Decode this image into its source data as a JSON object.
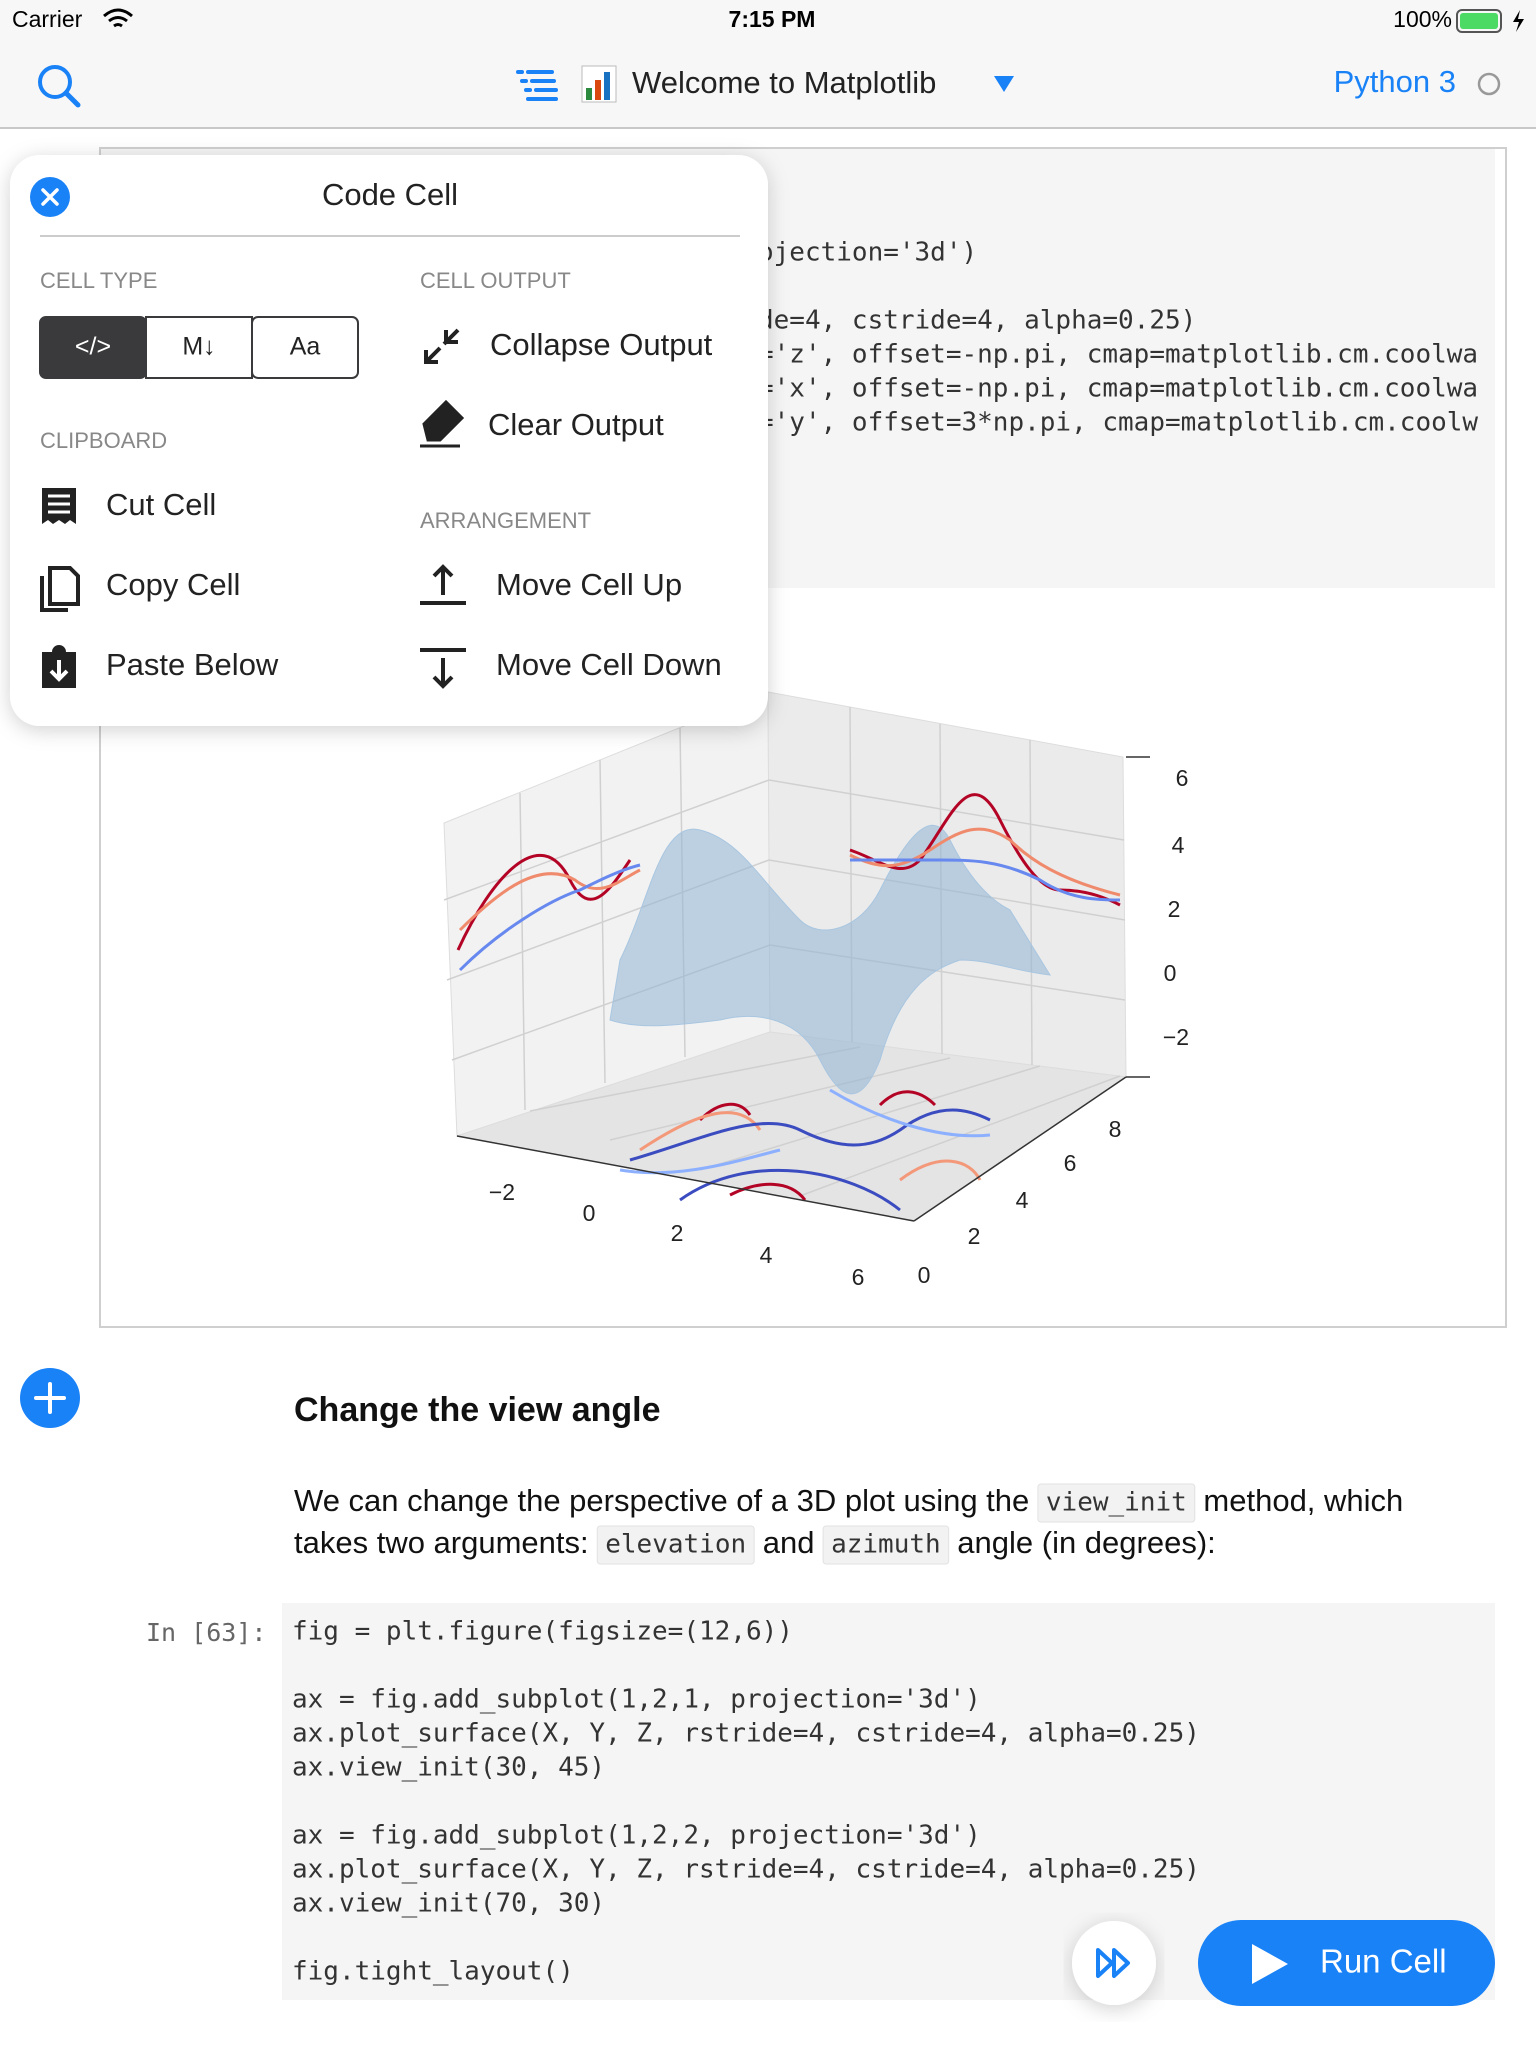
{
  "status_bar": {
    "carrier": "Carrier",
    "time": "7:15 PM",
    "battery": "100%"
  },
  "nav_bar": {
    "title": "Welcome to Matplotlib",
    "kernel": "Python 3"
  },
  "output_cell": {
    "code_lines": [
      "ojection='3d')",
      "de=4, cstride=4, alpha=0.25)",
      "='z', offset=-np.pi, cmap=matplotlib.cm.coolwa",
      "='x', offset=-np.pi, cmap=matplotlib.cm.coolwa",
      "='y', offset=3*np.pi, cmap=matplotlib.cm.coolw"
    ],
    "plot": {
      "x_tick_labels": [
        "−2",
        "0",
        "2",
        "4",
        "6"
      ],
      "y_tick_labels": [
        "0",
        "2",
        "4",
        "6",
        "8"
      ],
      "z_tick_labels": [
        "−2",
        "0",
        "2",
        "4",
        "6"
      ]
    }
  },
  "popover": {
    "title": "Code Cell",
    "cell_type": {
      "label": "CELL TYPE",
      "options": [
        "</>",
        "M↓",
        "Aa"
      ]
    },
    "cell_output": {
      "label": "CELL OUTPUT",
      "actions": [
        "Collapse Output",
        "Clear Output"
      ]
    },
    "clipboard": {
      "label": "CLIPBOARD",
      "actions": [
        "Cut Cell",
        "Copy Cell",
        "Paste Below"
      ]
    },
    "arrangement": {
      "label": "ARRANGEMENT",
      "actions": [
        "Move Cell Up",
        "Move Cell Down"
      ]
    }
  },
  "markdown_cell": {
    "heading": "Change the view angle",
    "lines": [
      [
        {
          "text": "We can change the perspective of a 3D plot using the "
        },
        {
          "code": "view_init"
        },
        {
          "text": " method, which"
        }
      ],
      [
        {
          "text": "takes two arguments: "
        },
        {
          "code": "elevation"
        },
        {
          "text": " and "
        },
        {
          "code": "azimuth"
        },
        {
          "text": " angle (in degrees):"
        }
      ]
    ]
  },
  "input_cell": {
    "prompt": "In [63]:",
    "code_lines": [
      "fig = plt.figure(figsize=(12,6))",
      "ax = fig.add_subplot(1,2,1, projection='3d')",
      "ax.plot_surface(X, Y, Z, rstride=4, cstride=4, alpha=0.25)",
      "ax.view_init(30, 45)",
      "ax = fig.add_subplot(1,2,2, projection='3d')",
      "ax.plot_surface(X, Y, Z, rstride=4, cstride=4, alpha=0.25)",
      "ax.view_init(70, 30)",
      "fig.tight_layout()"
    ]
  },
  "run_button": "Run Cell"
}
